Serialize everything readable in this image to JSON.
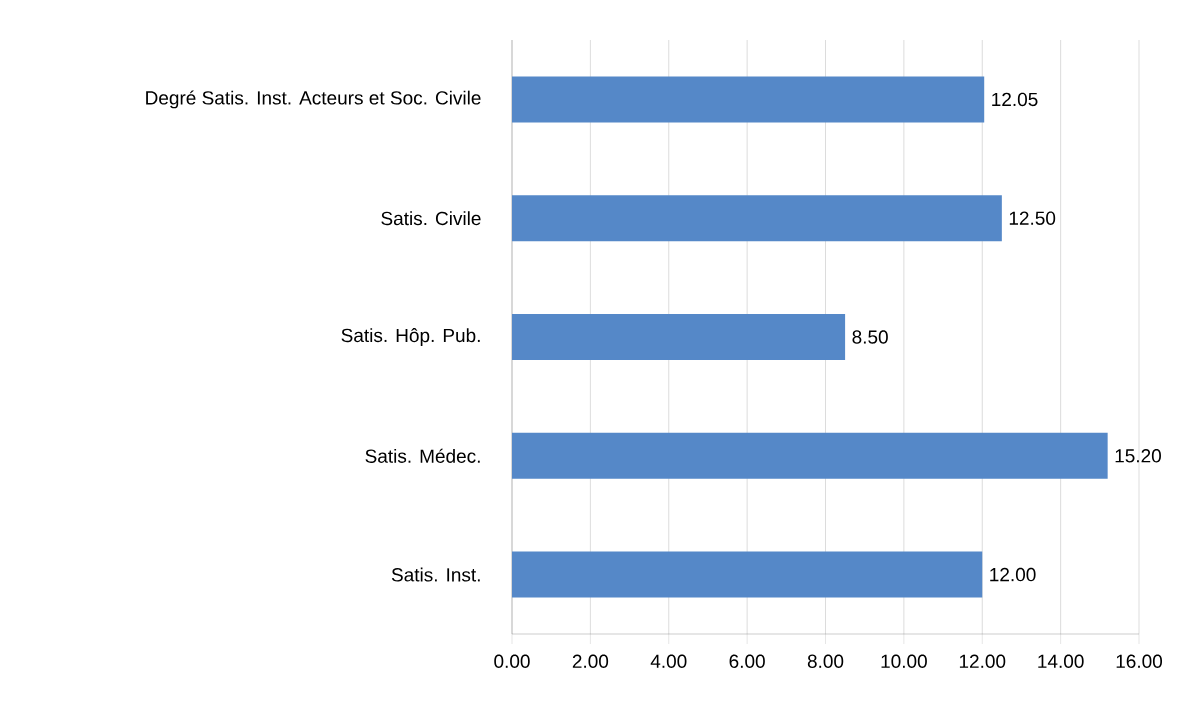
{
  "chart_data": {
    "type": "bar",
    "orientation": "horizontal",
    "categories": [
      "Degré Satis. Inst. Acteurs et Soc. Civile",
      "Satis. Civile",
      "Satis. Hôp. Pub.",
      "Satis. Médec.",
      "Satis. Inst."
    ],
    "values": [
      12.05,
      12.5,
      8.5,
      15.2,
      12.0
    ],
    "value_labels": [
      "12.05",
      "12.50",
      "8.50",
      "15.20",
      "12.00"
    ],
    "color": "#5588c8",
    "xlim": [
      0,
      16
    ],
    "xticks": [
      {
        "value": 0,
        "label": "0.00"
      },
      {
        "value": 2,
        "label": "2.00"
      },
      {
        "value": 4,
        "label": "4.00"
      },
      {
        "value": 6,
        "label": "6.00"
      },
      {
        "value": 8,
        "label": "8.00"
      },
      {
        "value": 10,
        "label": "10.00"
      },
      {
        "value": 12,
        "label": "12.00"
      },
      {
        "value": 14,
        "label": "14.00"
      },
      {
        "value": 16,
        "label": "16.00"
      }
    ],
    "grid": "x"
  }
}
